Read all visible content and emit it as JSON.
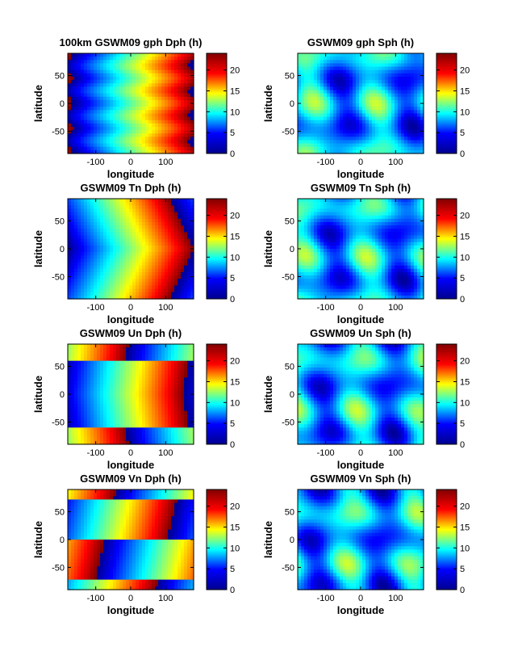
{
  "figure": {
    "colormap": "jet",
    "colormap_stops": [
      "#00008f",
      "#0000ff",
      "#00ffff",
      "#ffff00",
      "#ff0000",
      "#800000"
    ]
  },
  "chart_data": [
    {
      "type": "heatmap",
      "title": "100km GSWM09 gph Dph (h)",
      "xlabel": "longitude",
      "ylabel": "latitude",
      "xlim": [
        -180,
        180
      ],
      "ylim": [
        -90,
        90
      ],
      "xticks": [
        -100,
        0,
        100
      ],
      "yticks": [
        50,
        0,
        -50
      ],
      "colorbar": {
        "range": [
          0,
          24
        ],
        "ticks": [
          20,
          15,
          10,
          5,
          0
        ]
      },
      "pattern": "dph",
      "field": 0
    },
    {
      "type": "heatmap",
      "title": "GSWM09 gph Sph (h)",
      "xlabel": "longitude",
      "ylabel": "latitude",
      "xlim": [
        -180,
        180
      ],
      "ylim": [
        -90,
        90
      ],
      "xticks": [
        -100,
        0,
        100
      ],
      "yticks": [
        50,
        0,
        -50
      ],
      "colorbar": {
        "range": [
          0,
          24
        ],
        "ticks": [
          20,
          15,
          10,
          5,
          0
        ]
      },
      "pattern": "sph",
      "field": 0
    },
    {
      "type": "heatmap",
      "title": "GSWM09 Tn Dph (h)",
      "xlabel": "longitude",
      "ylabel": "latitude",
      "xlim": [
        -180,
        180
      ],
      "ylim": [
        -90,
        90
      ],
      "xticks": [
        -100,
        0,
        100
      ],
      "yticks": [
        50,
        0,
        -50
      ],
      "colorbar": {
        "range": [
          0,
          24
        ],
        "ticks": [
          20,
          15,
          10,
          5,
          0
        ]
      },
      "pattern": "dph",
      "field": 1
    },
    {
      "type": "heatmap",
      "title": "GSWM09 Tn Sph (h)",
      "xlabel": "longitude",
      "ylabel": "latitude",
      "xlim": [
        -180,
        180
      ],
      "ylim": [
        -90,
        90
      ],
      "xticks": [
        -100,
        0,
        100
      ],
      "yticks": [
        50,
        0,
        -50
      ],
      "colorbar": {
        "range": [
          0,
          24
        ],
        "ticks": [
          20,
          15,
          10,
          5,
          0
        ]
      },
      "pattern": "sph",
      "field": 1
    },
    {
      "type": "heatmap",
      "title": "GSWM09 Un Dph (h)",
      "xlabel": "longitude",
      "ylabel": "latitude",
      "xlim": [
        -180,
        180
      ],
      "ylim": [
        -90,
        90
      ],
      "xticks": [
        -100,
        0,
        100
      ],
      "yticks": [
        50,
        0,
        -50
      ],
      "colorbar": {
        "range": [
          0,
          24
        ],
        "ticks": [
          20,
          15,
          10,
          5,
          0
        ]
      },
      "pattern": "dph",
      "field": 2
    },
    {
      "type": "heatmap",
      "title": "GSWM09 Un Sph (h)",
      "xlabel": "longitude",
      "ylabel": "latitude",
      "xlim": [
        -180,
        180
      ],
      "ylim": [
        -90,
        90
      ],
      "xticks": [
        -100,
        0,
        100
      ],
      "yticks": [
        50,
        0,
        -50
      ],
      "colorbar": {
        "range": [
          0,
          24
        ],
        "ticks": [
          20,
          15,
          10,
          5,
          0
        ]
      },
      "pattern": "sph",
      "field": 2
    },
    {
      "type": "heatmap",
      "title": "GSWM09 Vn Dph (h)",
      "xlabel": "longitude",
      "ylabel": "latitude",
      "xlim": [
        -180,
        180
      ],
      "ylim": [
        -90,
        90
      ],
      "xticks": [
        -100,
        0,
        100
      ],
      "yticks": [
        50,
        0,
        -50
      ],
      "colorbar": {
        "range": [
          0,
          24
        ],
        "ticks": [
          20,
          15,
          10,
          5,
          0
        ]
      },
      "pattern": "dph",
      "field": 3
    },
    {
      "type": "heatmap",
      "title": "GSWM09 Vn Sph (h)",
      "xlabel": "longitude",
      "ylabel": "latitude",
      "xlim": [
        -180,
        180
      ],
      "ylim": [
        -90,
        90
      ],
      "xticks": [
        -100,
        0,
        100
      ],
      "yticks": [
        50,
        0,
        -50
      ],
      "colorbar": {
        "range": [
          0,
          24
        ],
        "ticks": [
          20,
          15,
          10,
          5,
          0
        ]
      },
      "pattern": "sph",
      "field": 3
    }
  ]
}
